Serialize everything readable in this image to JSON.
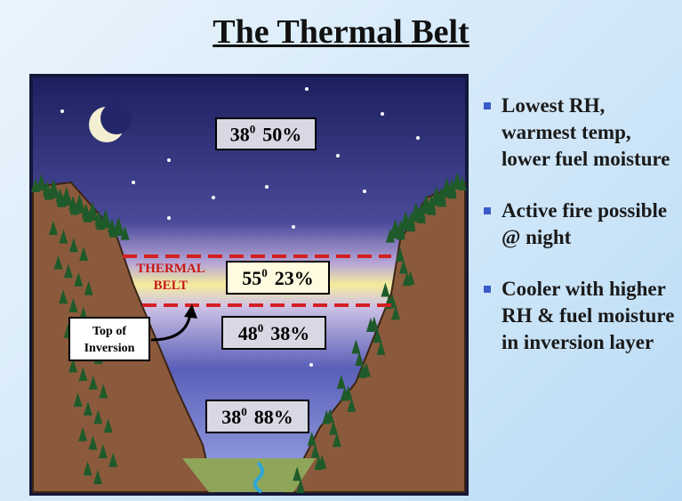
{
  "title": "The Thermal Belt",
  "readings": [
    {
      "temp": "38",
      "sup": "0",
      "rh": "50%"
    },
    {
      "temp": "55",
      "sup": "0",
      "rh": "23%"
    },
    {
      "temp": "48",
      "sup": "0",
      "rh": "38%"
    },
    {
      "temp": "38",
      "sup": "0",
      "rh": "88%"
    }
  ],
  "belt_label": [
    "THERMAL",
    "BELT"
  ],
  "inversion_label": [
    "Top of",
    "Inversion"
  ],
  "bullets": [
    "Lowest RH, warmest temp, lower fuel moisture",
    "Active fire possible @ night",
    "Cooler with higher RH & fuel moisture in inversion layer"
  ]
}
